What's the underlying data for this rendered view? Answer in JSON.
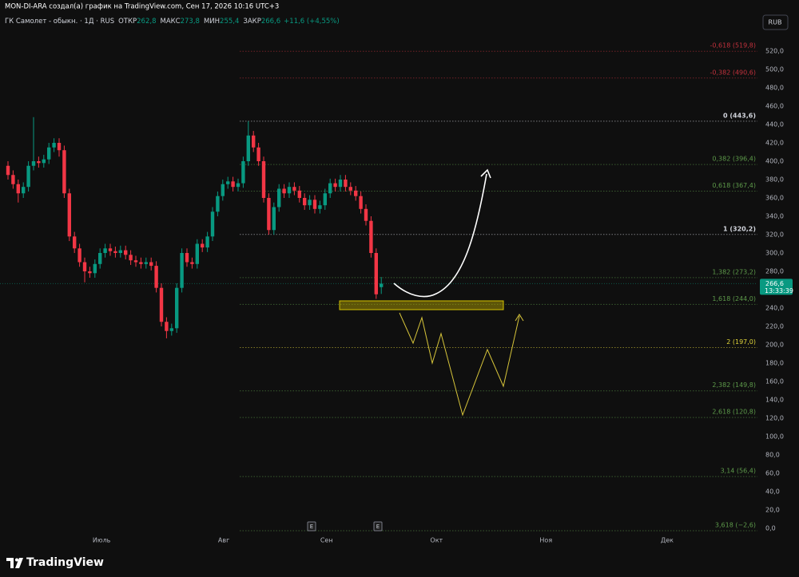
{
  "header": {
    "author_line": "MON-DI-ARA создал(а) график на TradingView.com, Сен 17, 2026 10:16 UTC+3",
    "currency_button": "RUB"
  },
  "chart_data": {
    "type": "candlestick",
    "title": "ГК Самолет - обыкн. · 1Д · RUS",
    "ohlc_legend": [
      {
        "name": "ОТКР",
        "value": 262.8,
        "label": "262,8"
      },
      {
        "name": "МАКС",
        "value": 273.8,
        "label": "273,8"
      },
      {
        "name": "МИН",
        "value": 255.4,
        "label": "255,4"
      },
      {
        "name": "ЗАКР",
        "value": 266.6,
        "label": "266,6"
      }
    ],
    "change": "+11,6 (+4,55%)",
    "up_color": "#089981",
    "down_color": "#f23645",
    "open": [
      395,
      385,
      375,
      365,
      372,
      395,
      400,
      398,
      402,
      415,
      420,
      412,
      365,
      318,
      305,
      290,
      280,
      278,
      288,
      300,
      305,
      302,
      300,
      303,
      298,
      292,
      290,
      288,
      290,
      286,
      262,
      225,
      215,
      218,
      262,
      300,
      290,
      288,
      310,
      306,
      318,
      345,
      362,
      375,
      378,
      372,
      376,
      400,
      428,
      415,
      400,
      360,
      325,
      350,
      370,
      365,
      372,
      368,
      360,
      352,
      358,
      348,
      352,
      365,
      376,
      372,
      380,
      372,
      368,
      362,
      348,
      335,
      300,
      262.8
    ],
    "high": [
      400,
      390,
      380,
      377,
      400,
      448,
      405,
      407,
      420,
      425,
      425,
      417,
      370,
      323,
      310,
      295,
      285,
      293,
      305,
      310,
      310,
      307,
      308,
      308,
      303,
      297,
      295,
      295,
      295,
      291,
      267,
      230,
      223,
      267,
      305,
      305,
      295,
      315,
      315,
      323,
      350,
      367,
      380,
      383,
      383,
      381,
      405,
      443.6,
      433,
      420,
      405,
      365,
      355,
      375,
      375,
      377,
      377,
      373,
      365,
      363,
      363,
      357,
      370,
      381,
      381,
      385,
      385,
      377,
      373,
      367,
      353,
      340,
      305,
      273.8
    ],
    "low": [
      380,
      370,
      355,
      360,
      367,
      390,
      393,
      393,
      397,
      410,
      405,
      360,
      313,
      300,
      285,
      268,
      273,
      273,
      283,
      295,
      297,
      295,
      295,
      293,
      287,
      285,
      283,
      283,
      281,
      257,
      220,
      207,
      210,
      213,
      257,
      285,
      283,
      283,
      301,
      301,
      313,
      340,
      357,
      370,
      367,
      367,
      371,
      395,
      410,
      395,
      355,
      320,
      320,
      345,
      360,
      360,
      363,
      355,
      347,
      347,
      343,
      343,
      347,
      360,
      367,
      367,
      367,
      363,
      357,
      343,
      330,
      295,
      250,
      255.4
    ],
    "close": [
      385,
      375,
      365,
      372,
      395,
      400,
      398,
      402,
      415,
      420,
      412,
      365,
      318,
      305,
      290,
      280,
      278,
      288,
      300,
      305,
      302,
      300,
      303,
      298,
      292,
      290,
      288,
      290,
      286,
      262,
      225,
      215,
      218,
      262,
      300,
      290,
      288,
      310,
      306,
      318,
      345,
      362,
      375,
      378,
      372,
      376,
      400,
      428,
      415,
      400,
      360,
      325,
      350,
      370,
      365,
      372,
      368,
      360,
      352,
      358,
      348,
      352,
      365,
      376,
      372,
      380,
      372,
      368,
      362,
      348,
      335,
      300,
      255,
      266.6
    ],
    "xlim": [
      -1.5625,
      146.5625
    ],
    "xticks": [
      {
        "value": 18.3,
        "label": "Июль"
      },
      {
        "value": 42.2,
        "label": "Авг"
      },
      {
        "value": 62.3,
        "label": "Сен"
      },
      {
        "value": 83.8,
        "label": "Окт"
      },
      {
        "value": 105.2,
        "label": "Ноя"
      },
      {
        "value": 128.9,
        "label": "Дек"
      }
    ],
    "ylim": [
      -15.65,
      540.87
    ],
    "yticks": [
      {
        "value": 0,
        "label": "0,0"
      },
      {
        "value": 20,
        "label": "20,0"
      },
      {
        "value": 40,
        "label": "40,0"
      },
      {
        "value": 60,
        "label": "60,0"
      },
      {
        "value": 80,
        "label": "80,0"
      },
      {
        "value": 100,
        "label": "100,0"
      },
      {
        "value": 120,
        "label": "120,0"
      },
      {
        "value": 140,
        "label": "140,0"
      },
      {
        "value": 160,
        "label": "160,0"
      },
      {
        "value": 180,
        "label": "180,0"
      },
      {
        "value": 200,
        "label": "200,0"
      },
      {
        "value": 220,
        "label": "220,0"
      },
      {
        "value": 240,
        "label": "240,0"
      },
      {
        "value": 260,
        "label": "260,0"
      },
      {
        "value": 280,
        "label": "280,0"
      },
      {
        "value": 300,
        "label": "300,0"
      },
      {
        "value": 320,
        "label": "320,0"
      },
      {
        "value": 340,
        "label": "340,0"
      },
      {
        "value": 360,
        "label": "360,0"
      },
      {
        "value": 380,
        "label": "380,0"
      },
      {
        "value": 400,
        "label": "400,0"
      },
      {
        "value": 420,
        "label": "420,0"
      },
      {
        "value": 440,
        "label": "440,0"
      },
      {
        "value": 460,
        "label": "460,0"
      },
      {
        "value": 480,
        "label": "480,0"
      },
      {
        "value": 500,
        "label": "500,0"
      },
      {
        "value": 520,
        "label": "520,0"
      }
    ],
    "grid": false,
    "fib_levels": [
      {
        "value": 519.8,
        "label": "-0,618 (519,8)",
        "color": "#c2313c"
      },
      {
        "value": 490.6,
        "label": "-0,382 (490,6)",
        "color": "#c2313c"
      },
      {
        "value": 443.6,
        "label": "0 (443,6)",
        "color": "#d1d4dc"
      },
      {
        "value": 396.4,
        "label": "0,382 (396,4)",
        "color": "#5d9a4a"
      },
      {
        "value": 367.4,
        "label": "0,618 (367,4)",
        "color": "#5d9a4a"
      },
      {
        "value": 320.2,
        "label": "1 (320,2)",
        "color": "#d1d4dc"
      },
      {
        "value": 273.2,
        "label": "1,382 (273,2)",
        "color": "#5d9a4a"
      },
      {
        "value": 244.0,
        "label": "1,618 (244,0)",
        "color": "#5d9a4a"
      },
      {
        "value": 197.0,
        "label": "2 (197,0)",
        "color": "#e0d43a"
      },
      {
        "value": 149.8,
        "label": "2,382 (149,8)",
        "color": "#5d9a4a"
      },
      {
        "value": 120.8,
        "label": "2,618 (120,8)",
        "color": "#5d9a4a"
      },
      {
        "value": 56.4,
        "label": "3,14 (56,4)",
        "color": "#5d9a4a"
      },
      {
        "value": -2.6,
        "label": "3,618 (−2,6)",
        "color": "#5d9a4a"
      }
    ],
    "last_price": {
      "value": 266.6,
      "label": "266,6"
    },
    "countdown": "13:33:39",
    "events": [
      "E",
      "E"
    ]
  },
  "footer": {
    "brand": "TradingView"
  }
}
